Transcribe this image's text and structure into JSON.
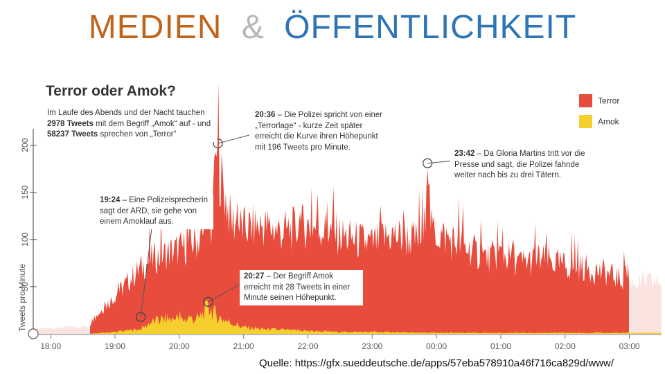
{
  "slide": {
    "title_part1": "MEDIEN",
    "title_amp": "&",
    "title_part2": "ÖFFENTLICHKEIT",
    "title_colors": {
      "part1": "#c0631b",
      "amp": "#b7b7b7",
      "part2": "#2e75b6"
    },
    "source": "Quelle: https://gfx.sueddeutsche.de/apps/57eba578910a46f716ca829d/www/"
  },
  "chart_data": {
    "type": "area",
    "title": "Terror oder Amok?",
    "ylabel": "Tweets pro Minute",
    "xlabel": "",
    "ylim": [
      0,
      210
    ],
    "yticks": [
      0,
      50,
      100,
      150,
      200
    ],
    "xlim": [
      17.75,
      27.5
    ],
    "xtick_labels": [
      "18:00",
      "19:00",
      "20:00",
      "21:00",
      "22:00",
      "23:00",
      "00:00",
      "01:00",
      "02:00",
      "03:00"
    ],
    "xtick_values": [
      18,
      19,
      20,
      21,
      22,
      23,
      24,
      25,
      26,
      27
    ],
    "legend": {
      "position": "top-right"
    },
    "series": [
      {
        "name": "Terror",
        "color": "#e74c3c",
        "faded_color": "#fbe3df",
        "x": [
          17.75,
          18.6,
          18.65,
          19.0,
          19.4,
          19.6,
          20.0,
          20.3,
          20.5,
          20.55,
          20.8,
          21.0,
          21.3,
          21.6,
          22.0,
          22.3,
          22.6,
          23.0,
          23.3,
          23.6,
          23.8,
          23.86,
          23.92,
          24.2,
          24.5,
          24.8,
          25.0,
          25.3,
          25.6,
          26.0,
          26.3,
          26.6,
          27.0,
          27.5
        ],
        "values": [
          5,
          8,
          15,
          40,
          70,
          80,
          90,
          100,
          110,
          196,
          120,
          112,
          115,
          108,
          115,
          110,
          102,
          95,
          105,
          100,
          100,
          175,
          110,
          100,
          90,
          80,
          85,
          75,
          80,
          72,
          70,
          65,
          55,
          55
        ]
      },
      {
        "name": "Amok",
        "color": "#f4cf2e",
        "x": [
          17.75,
          18.6,
          19.0,
          19.4,
          19.55,
          19.8,
          20.0,
          20.3,
          20.45,
          20.6,
          20.8,
          21.0,
          21.3,
          21.6,
          22.0,
          22.5,
          23.0,
          24.0,
          25.0,
          26.0,
          27.0,
          27.5
        ],
        "values": [
          0,
          0,
          2,
          5,
          12,
          16,
          15,
          16,
          28,
          18,
          12,
          7,
          5,
          4,
          3,
          2,
          2,
          1,
          1,
          1,
          1,
          1
        ]
      }
    ],
    "annotations": [
      {
        "time_h": 19.4,
        "value": 20,
        "label_time": "19:24",
        "text": "– Eine Polizeisprecherin sagt der ARD, sie gehe von einem Amoklauf aus."
      },
      {
        "time_h": 20.6,
        "value": 196,
        "label_time": "20:36",
        "text": "– Die Polizei spricht von einer „Terrorlage“ - kurze Zeit später erreicht die Kurve ihren Höhepunkt mit 196 Tweets pro Minute."
      },
      {
        "time_h": 20.45,
        "value": 28,
        "label_time": "20:27",
        "text": "– Der Begriff Amok erreicht mit 28 Tweets in einer Minute seinen Höhepunkt."
      },
      {
        "time_h": 23.7,
        "value": 180,
        "label_time": "23:42",
        "text": "– Da Gloria Martins tritt vor die Presse und sagt, die Polizei fahnde weiter nach bis zu drei Tätern."
      }
    ],
    "summary": {
      "pre": "Im Laufe des Abends und der Nacht tauchen",
      "amok_count": "2978 Tweets",
      "mid": "mit dem Begriff „Amok“ auf - und",
      "terror_count": "58237 Tweets",
      "post": "sprechen von „Terror“"
    }
  }
}
